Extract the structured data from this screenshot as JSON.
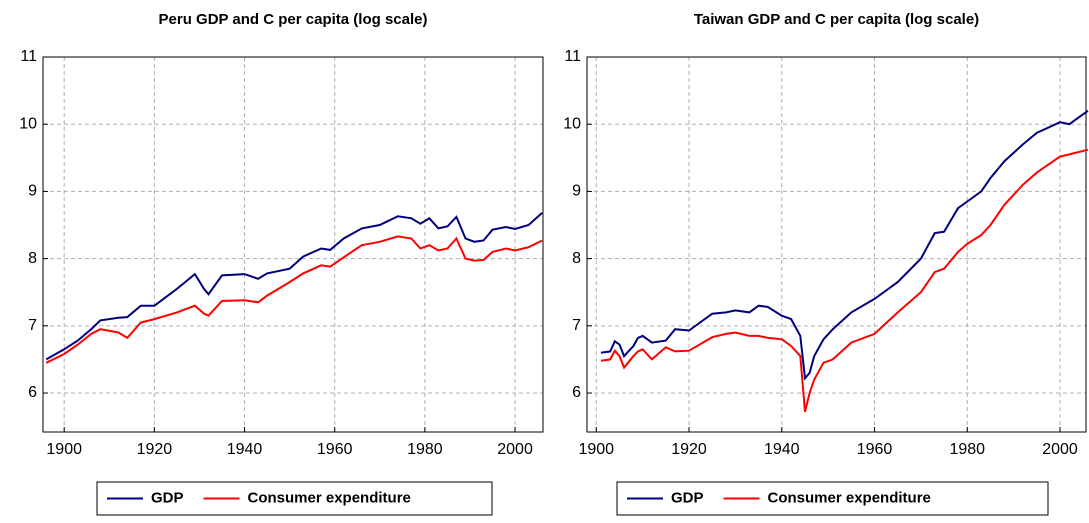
{
  "chart_data": [
    {
      "type": "line",
      "title": "Peru GDP and C per capita (log scale)",
      "x": [
        1896,
        1900,
        1903,
        1906,
        1908,
        1912,
        1914,
        1917,
        1920,
        1925,
        1929,
        1931,
        1932,
        1935,
        1940,
        1943,
        1945,
        1950,
        1953,
        1957,
        1959,
        1962,
        1966,
        1970,
        1974,
        1977,
        1979,
        1981,
        1983,
        1985,
        1987,
        1989,
        1991,
        1993,
        1995,
        1998,
        2000,
        2003,
        2006
      ],
      "series": [
        {
          "name": "GDP",
          "color": "#000080",
          "values": [
            6.5,
            6.65,
            6.78,
            6.95,
            7.08,
            7.12,
            7.13,
            7.3,
            7.3,
            7.55,
            7.77,
            7.55,
            7.47,
            7.75,
            7.77,
            7.7,
            7.78,
            7.85,
            8.03,
            8.15,
            8.13,
            8.3,
            8.45,
            8.5,
            8.63,
            8.6,
            8.52,
            8.6,
            8.45,
            8.48,
            8.62,
            8.3,
            8.25,
            8.27,
            8.43,
            8.47,
            8.44,
            8.5,
            8.68
          ]
        },
        {
          "name": "Consumer expenditure",
          "color": "#ff0000",
          "values": [
            6.45,
            6.58,
            6.72,
            6.88,
            6.95,
            6.9,
            6.82,
            7.05,
            7.1,
            7.2,
            7.3,
            7.18,
            7.15,
            7.37,
            7.38,
            7.35,
            7.45,
            7.65,
            7.78,
            7.9,
            7.88,
            8.02,
            8.2,
            8.25,
            8.33,
            8.3,
            8.15,
            8.2,
            8.12,
            8.15,
            8.3,
            8.0,
            7.97,
            7.98,
            8.1,
            8.15,
            8.12,
            8.17,
            8.27
          ]
        }
      ],
      "xlim": [
        1895.3,
        2006.2
      ],
      "xticks": [
        1900,
        1920,
        1940,
        1960,
        1980,
        2000
      ],
      "ylim": [
        5.42,
        11
      ],
      "yticks": [
        6,
        7,
        8,
        9,
        10,
        11
      ],
      "grid": true
    },
    {
      "type": "line",
      "title": "Taiwan GDP and C per capita (log scale)",
      "x": [
        1901,
        1903,
        1904,
        1905,
        1906,
        1908,
        1909,
        1910,
        1912,
        1915,
        1917,
        1920,
        1925,
        1928,
        1930,
        1933,
        1935,
        1937,
        1940,
        1942,
        1944,
        1945,
        1946,
        1947,
        1949,
        1951,
        1955,
        1960,
        1965,
        1970,
        1973,
        1975,
        1978,
        1980,
        1983,
        1985,
        1988,
        1992,
        1995,
        2000,
        2002,
        2006
      ],
      "series": [
        {
          "name": "GDP",
          "color": "#000080",
          "values": [
            6.6,
            6.62,
            6.77,
            6.72,
            6.55,
            6.7,
            6.82,
            6.85,
            6.75,
            6.78,
            6.95,
            6.93,
            7.18,
            7.2,
            7.23,
            7.2,
            7.3,
            7.28,
            7.15,
            7.1,
            6.85,
            6.22,
            6.3,
            6.55,
            6.8,
            6.95,
            7.2,
            7.4,
            7.65,
            8.0,
            8.38,
            8.4,
            8.75,
            8.85,
            9.0,
            9.2,
            9.45,
            9.7,
            9.87,
            10.03,
            10.0,
            10.2
          ]
        },
        {
          "name": "Consumer expenditure",
          "color": "#ff0000",
          "values": [
            6.48,
            6.5,
            6.63,
            6.55,
            6.38,
            6.55,
            6.62,
            6.65,
            6.5,
            6.68,
            6.62,
            6.63,
            6.83,
            6.88,
            6.9,
            6.85,
            6.85,
            6.82,
            6.8,
            6.7,
            6.55,
            5.72,
            6.0,
            6.2,
            6.45,
            6.5,
            6.75,
            6.88,
            7.2,
            7.5,
            7.8,
            7.85,
            8.1,
            8.22,
            8.35,
            8.5,
            8.8,
            9.1,
            9.28,
            9.52,
            9.55,
            9.62
          ]
        }
      ],
      "xlim": [
        1898,
        2005.6
      ],
      "xticks": [
        1900,
        1920,
        1940,
        1960,
        1980,
        2000
      ],
      "ylim": [
        5.42,
        11
      ],
      "yticks": [
        6,
        7,
        8,
        9,
        10,
        11
      ],
      "grid": true
    }
  ]
}
